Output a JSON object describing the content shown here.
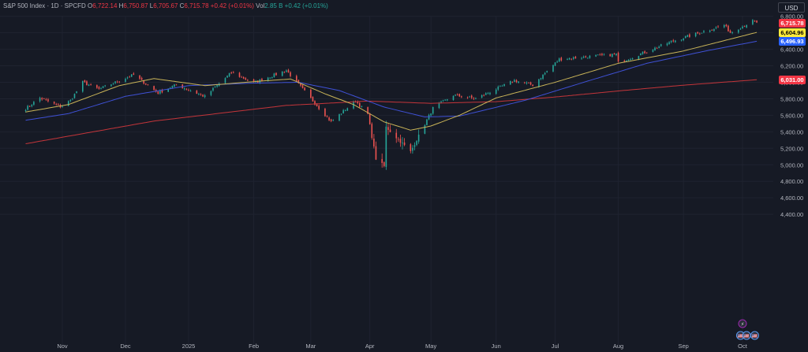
{
  "header": {
    "symbol": "S&P 500 Index · 1D · SPCFD",
    "o_label": "O",
    "o_value": "6,722.14",
    "h_label": "H",
    "h_value": "6,750.87",
    "l_label": "L",
    "l_value": "6,705.67",
    "c_label": "C",
    "c_value": "6,715.78",
    "change": "+0.42 (+0.01%)",
    "vol_label": "Vol",
    "vol_value": "2.85 B",
    "vol_change": "+0.42 (+0.01%)"
  },
  "currency_button": "USD",
  "price_badges": [
    {
      "label": "6,715.78",
      "value": 6715.78,
      "bg": "#f23645",
      "fg": "#ffffff"
    },
    {
      "label": "6,604.96",
      "value": 6604.96,
      "bg": "#ffeb3b",
      "fg": "#000000"
    },
    {
      "label": "6,496.93",
      "value": 6496.93,
      "bg": "#2962ff",
      "fg": "#ffffff"
    },
    {
      "label": "6,031.00",
      "value": 6031.0,
      "bg": "#f23645",
      "fg": "#ffffff"
    }
  ],
  "colors": {
    "up": "#26a69a",
    "down": "#ef5350",
    "ma_short": "#c9b458",
    "ma_mid": "#3f51d6",
    "ma_long": "#c4353a",
    "grid": "#1f2330",
    "text": "#b2b5be",
    "background": "#161a25"
  },
  "chart_data": {
    "type": "candlestick",
    "y_ticks": [
      4400,
      4600,
      4800,
      5000,
      5200,
      5400,
      5600,
      5800,
      6000,
      6200,
      6400,
      6600,
      6800
    ],
    "y_tick_labels": [
      "4,400.00",
      "4,600.00",
      "4,800.00",
      "5,000.00",
      "5,200.00",
      "5,400.00",
      "5,600.00",
      "5,800.00",
      "6,000.00",
      "6,200.00",
      "6,400.00",
      "6,600.00",
      "6,800.00"
    ],
    "ylim": [
      4330,
      6880
    ],
    "x_labels": [
      {
        "label": "Nov",
        "date": "2024-11-01"
      },
      {
        "label": "Dec",
        "date": "2024-12-02"
      },
      {
        "label": "2025",
        "date": "2025-01-02"
      },
      {
        "label": "Feb",
        "date": "2025-02-03"
      },
      {
        "label": "Mar",
        "date": "2025-03-03"
      },
      {
        "label": "Apr",
        "date": "2025-04-01"
      },
      {
        "label": "May",
        "date": "2025-05-01"
      },
      {
        "label": "Jun",
        "date": "2025-06-02"
      },
      {
        "label": "Jul",
        "date": "2025-07-01"
      },
      {
        "label": "Aug",
        "date": "2025-08-01"
      },
      {
        "label": "Sep",
        "date": "2025-09-02"
      },
      {
        "label": "Oct",
        "date": "2025-10-01"
      }
    ],
    "close_anchors": [
      [
        "2024-10-14",
        5680
      ],
      [
        "2024-10-21",
        5810
      ],
      [
        "2024-10-31",
        5705
      ],
      [
        "2024-11-05",
        5780
      ],
      [
        "2024-11-11",
        6001
      ],
      [
        "2024-11-19",
        5916
      ],
      [
        "2024-12-06",
        6090
      ],
      [
        "2024-12-18",
        5872
      ],
      [
        "2024-12-27",
        5970
      ],
      [
        "2025-01-10",
        5827
      ],
      [
        "2025-01-23",
        6118
      ],
      [
        "2025-02-03",
        5994
      ],
      [
        "2025-02-19",
        6144
      ],
      [
        "2025-03-13",
        5521
      ],
      [
        "2025-03-25",
        5776
      ],
      [
        "2025-03-31",
        5611
      ],
      [
        "2025-04-04",
        5074
      ],
      [
        "2025-04-08",
        4982
      ],
      [
        "2025-04-09",
        5456
      ],
      [
        "2025-04-21",
        5158
      ],
      [
        "2025-05-02",
        5686
      ],
      [
        "2025-05-12",
        5844
      ],
      [
        "2025-05-23",
        5802
      ],
      [
        "2025-06-11",
        6022
      ],
      [
        "2025-06-20",
        5967
      ],
      [
        "2025-07-03",
        6279
      ],
      [
        "2025-07-31",
        6339
      ],
      [
        "2025-08-01",
        6238
      ],
      [
        "2025-08-28",
        6501
      ],
      [
        "2025-09-22",
        6693
      ],
      [
        "2025-09-25",
        6604
      ],
      [
        "2025-10-06",
        6740
      ],
      [
        "2025-10-08",
        6715.78
      ]
    ],
    "sma_short_anchors": [
      [
        "2024-10-14",
        5640
      ],
      [
        "2024-11-04",
        5730
      ],
      [
        "2024-11-29",
        5960
      ],
      [
        "2024-12-16",
        6045
      ],
      [
        "2025-01-10",
        5960
      ],
      [
        "2025-02-04",
        6010
      ],
      [
        "2025-02-21",
        6040
      ],
      [
        "2025-03-10",
        5860
      ],
      [
        "2025-03-24",
        5730
      ],
      [
        "2025-04-08",
        5520
      ],
      [
        "2025-04-21",
        5420
      ],
      [
        "2025-05-01",
        5470
      ],
      [
        "2025-05-15",
        5600
      ],
      [
        "2025-06-02",
        5810
      ],
      [
        "2025-07-01",
        6000
      ],
      [
        "2025-08-01",
        6230
      ],
      [
        "2025-09-02",
        6380
      ],
      [
        "2025-10-08",
        6604.96
      ]
    ],
    "sma_mid_anchors": [
      [
        "2024-10-14",
        5540
      ],
      [
        "2024-11-04",
        5620
      ],
      [
        "2024-12-02",
        5830
      ],
      [
        "2025-01-02",
        5960
      ],
      [
        "2025-02-03",
        5990
      ],
      [
        "2025-02-25",
        6000
      ],
      [
        "2025-03-17",
        5900
      ],
      [
        "2025-04-08",
        5700
      ],
      [
        "2025-04-28",
        5580
      ],
      [
        "2025-05-15",
        5590
      ],
      [
        "2025-06-16",
        5780
      ],
      [
        "2025-07-15",
        6000
      ],
      [
        "2025-08-15",
        6230
      ],
      [
        "2025-09-15",
        6390
      ],
      [
        "2025-10-08",
        6496.93
      ]
    ],
    "sma_long_anchors": [
      [
        "2024-10-14",
        5255
      ],
      [
        "2024-12-16",
        5530
      ],
      [
        "2025-02-19",
        5720
      ],
      [
        "2025-03-31",
        5772
      ],
      [
        "2025-05-01",
        5745
      ],
      [
        "2025-06-02",
        5765
      ],
      [
        "2025-07-01",
        5822
      ],
      [
        "2025-08-01",
        5895
      ],
      [
        "2025-09-02",
        5965
      ],
      [
        "2025-10-08",
        6031.0
      ]
    ],
    "markers": [
      {
        "symbol": "⚡",
        "date": "2025-10-01"
      },
      {
        "symbol": "🇺🇸",
        "date": "2025-09-30"
      },
      {
        "symbol": "🇺🇸",
        "date": "2025-10-03"
      },
      {
        "symbol": "🇺🇸",
        "date": "2025-10-07"
      }
    ],
    "grid": true
  }
}
